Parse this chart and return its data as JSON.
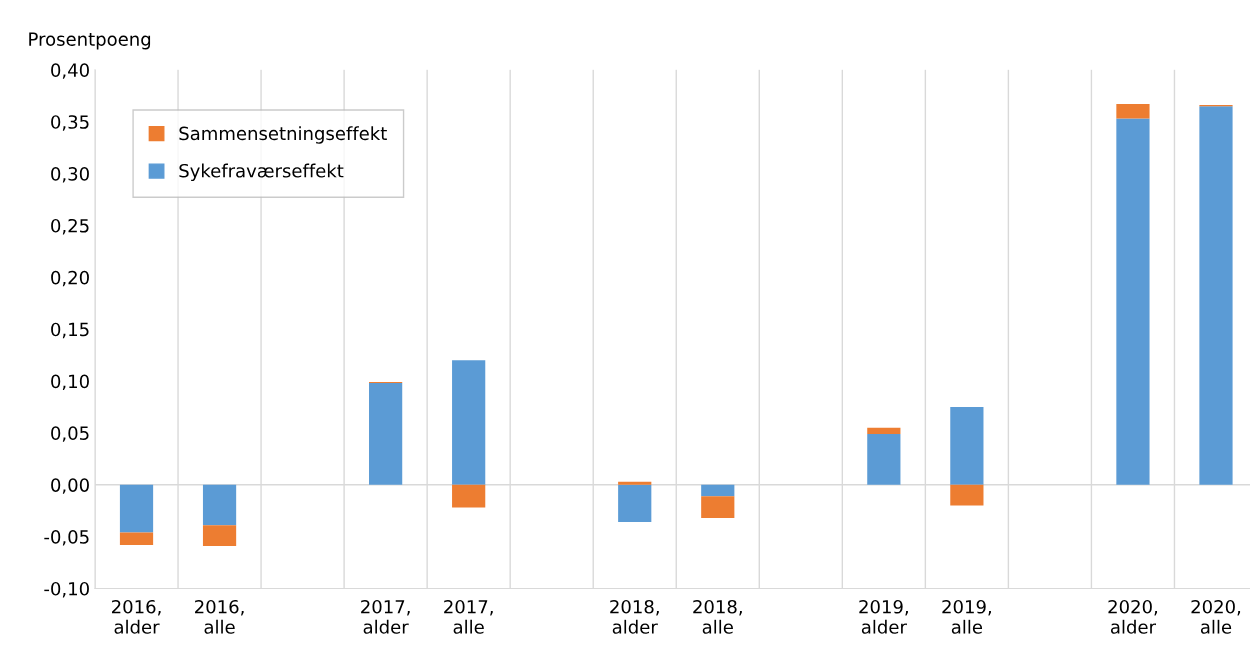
{
  "chart_data": {
    "type": "bar",
    "stacked": true,
    "ylabel": "Prosentpoeng",
    "categories": [
      "2016,\nalder",
      "2016,\nalle",
      null,
      "2017,\nalder",
      "2017,\nalle",
      null,
      "2018,\nalder",
      "2018,\nalle",
      null,
      "2019,\nalder",
      "2019,\nalle",
      null,
      "2020,\nalder",
      "2020,\nalle"
    ],
    "series": [
      {
        "name": "Sykefraværseffekt",
        "color": "#5b9bd5",
        "values": [
          -0.046,
          -0.039,
          null,
          0.098,
          0.12,
          null,
          -0.036,
          -0.011,
          null,
          0.049,
          0.075,
          null,
          0.353,
          0.365
        ]
      },
      {
        "name": "Sammensetningseffekt",
        "color": "#ed7d31",
        "values": [
          -0.012,
          -0.02,
          null,
          0.001,
          -0.022,
          null,
          0.003,
          -0.021,
          null,
          0.006,
          -0.02,
          null,
          0.014,
          0.001
        ]
      }
    ],
    "ylim": [
      -0.1,
      0.4
    ],
    "yticks": [
      {
        "value": -0.1,
        "label": "-0,10"
      },
      {
        "value": -0.05,
        "label": "-0,05"
      },
      {
        "value": 0,
        "label": "0,00"
      },
      {
        "value": 0.05,
        "label": "0,05"
      },
      {
        "value": 0.1,
        "label": "0,10"
      },
      {
        "value": 0.15,
        "label": "0,15"
      },
      {
        "value": 0.2,
        "label": "0,20"
      },
      {
        "value": 0.25,
        "label": "0,25"
      },
      {
        "value": 0.3,
        "label": "0,30"
      },
      {
        "value": 0.35,
        "label": "0,35"
      },
      {
        "value": 0.4,
        "label": "0,40"
      }
    ],
    "ref_lines": [
      {
        "axis": "y",
        "value": 0,
        "color": "#d9d9d9"
      }
    ],
    "grid": "x",
    "legend": "top left"
  }
}
